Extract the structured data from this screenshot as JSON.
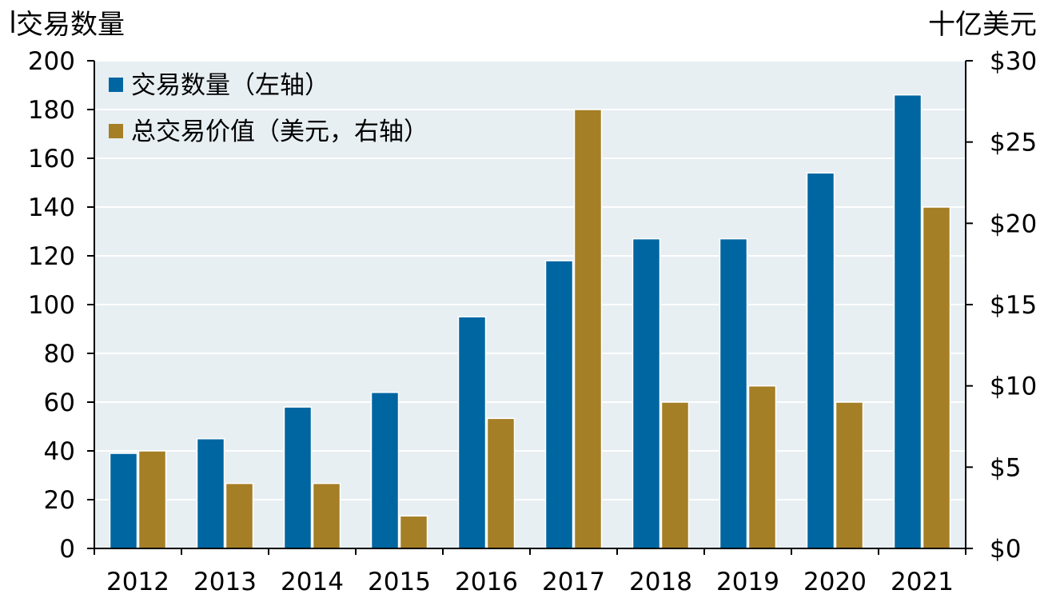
{
  "chart_data": {
    "type": "bar",
    "title": "",
    "left_axis_title": "交易数量",
    "right_axis_title": "十亿美元",
    "categories": [
      "2012",
      "2013",
      "2014",
      "2015",
      "2016",
      "2017",
      "2018",
      "2019",
      "2020",
      "2021"
    ],
    "series": [
      {
        "name": "交易数量（左轴）",
        "axis": "left",
        "color": "#0066a1",
        "values": [
          39,
          45,
          58,
          64,
          95,
          118,
          127,
          127,
          154,
          186
        ]
      },
      {
        "name": "总交易价值（美元，右轴）",
        "axis": "right",
        "color": "#a57f26",
        "values": [
          6,
          4,
          4,
          2,
          8,
          27,
          9,
          10,
          9,
          21
        ]
      }
    ],
    "left_axis": {
      "min": 0,
      "max": 200,
      "ticks": [
        0,
        20,
        40,
        60,
        80,
        100,
        120,
        140,
        160,
        180,
        200
      ]
    },
    "right_axis": {
      "min": 0,
      "max": 30,
      "ticks": [
        0,
        5,
        10,
        15,
        20,
        25,
        30
      ],
      "tick_labels": [
        "$0",
        "$5",
        "$10",
        "$15",
        "$20",
        "$25",
        "$30"
      ]
    },
    "plot_background": "#e7eff3",
    "grid": true,
    "legend_position": "top-left"
  }
}
